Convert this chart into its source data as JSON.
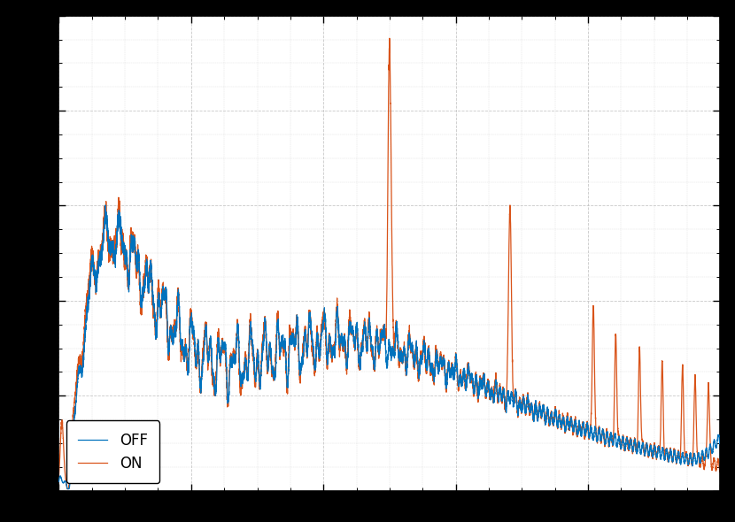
{
  "title": "",
  "xlabel": "",
  "ylabel": "",
  "line_off_color": "#0072BD",
  "line_on_color": "#D95319",
  "line_width": 0.9,
  "background_color": "#FFFFFF",
  "grid_color": "#BBBBBB",
  "legend_labels": [
    "OFF",
    "ON"
  ],
  "legend_loc": "lower left",
  "xlim": [
    0,
    1000
  ],
  "figsize": [
    8.3,
    5.9
  ],
  "dpi": 100,
  "fig_facecolor": "#000000",
  "ylim": [
    0,
    1.0
  ]
}
